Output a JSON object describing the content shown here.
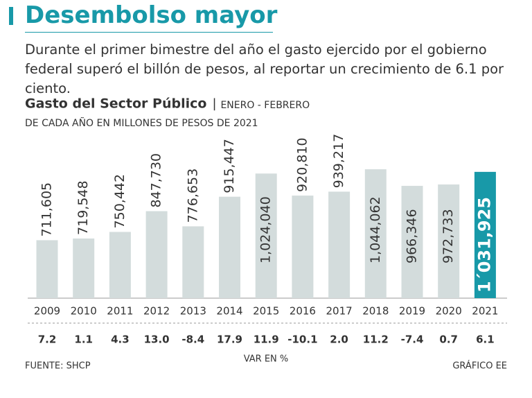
{
  "chart_data": {
    "type": "bar",
    "title": "Desembolso mayor",
    "subtitle": "Durante el primer bimestre del año el gasto ejercido por el gobierno federal superó el billón de pesos, al reportar un crecimiento de 6.1 por ciento.",
    "chart_title": "Gasto del Sector Público",
    "period": "ENERO - FEBRERO",
    "units": "DE CADA AÑO EN MILLONES DE PESOS DE 2021",
    "categories": [
      "2009",
      "2010",
      "2011",
      "2012",
      "2013",
      "2014",
      "2015",
      "2016",
      "2017",
      "2018",
      "2019",
      "2020",
      "2021"
    ],
    "values": [
      711605,
      719548,
      750442,
      847730,
      776653,
      915447,
      1024040,
      920810,
      939217,
      1044062,
      966346,
      972733,
      1031925
    ],
    "value_labels": [
      "711,605",
      "719,548",
      "750,442",
      "847,730",
      "776,653",
      "915,447",
      "1,024,040",
      "920,810",
      "939,217",
      "1,044,062",
      "966,346",
      "972,733",
      "1´031,925"
    ],
    "colors": [
      "#d3dcdc",
      "#d3dcdc",
      "#d3dcdc",
      "#d3dcdc",
      "#d3dcdc",
      "#d3dcdc",
      "#d3dcdc",
      "#d3dcdc",
      "#d3dcdc",
      "#d3dcdc",
      "#d3dcdc",
      "#d3dcdc",
      "#1899a8"
    ],
    "ylim": [
      440000,
      1350000
    ],
    "growth": {
      "name": "VAR EN %",
      "values": [
        7.2,
        1.1,
        4.3,
        13.0,
        -8.4,
        17.9,
        11.9,
        -10.1,
        2.0,
        11.2,
        -7.4,
        0.7,
        6.1
      ],
      "value_labels": [
        "7.2",
        "1.1",
        "4.3",
        "13.0",
        "-8.4",
        "17.9",
        "11.9",
        "-10.1",
        "2.0",
        "11.2",
        "-7.4",
        "0.7",
        "6.1"
      ]
    },
    "source": "FUENTE: SHCP",
    "credit": "GRÁFICO EE"
  }
}
